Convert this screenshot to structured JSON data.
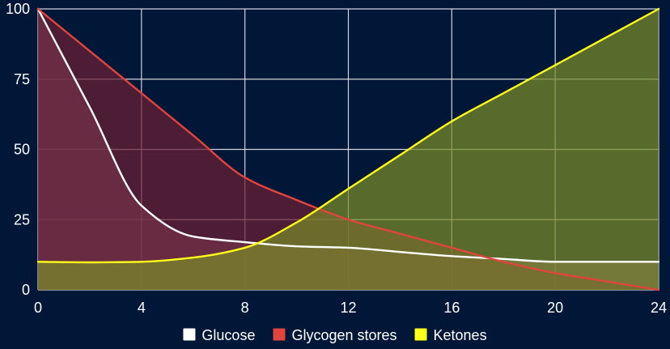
{
  "chart_data": {
    "type": "area",
    "title": "",
    "xlabel": "",
    "ylabel": "",
    "x": [
      0,
      2,
      4,
      6,
      8,
      10,
      12,
      14,
      16,
      18,
      20,
      22,
      24
    ],
    "xlim": [
      0,
      24
    ],
    "ylim": [
      0,
      100
    ],
    "x_ticks": [
      0,
      4,
      8,
      12,
      16,
      20,
      24
    ],
    "y_ticks": [
      0,
      25,
      50,
      75,
      100
    ],
    "grid": true,
    "legend_position": "bottom",
    "series": [
      {
        "name": "Glucose",
        "color": "#ffffff",
        "fill": "#8c6275",
        "values": [
          100,
          65,
          30,
          19,
          17,
          15.5,
          15,
          13.5,
          12,
          11,
          10,
          10,
          10
        ]
      },
      {
        "name": "Glycogen stores",
        "color": "#e0443c",
        "fill": "#6b1f34",
        "values": [
          100,
          85,
          70,
          55,
          40,
          32,
          25,
          20,
          15,
          10,
          6,
          3,
          0
        ]
      },
      {
        "name": "Ketones",
        "color": "#ffff1a",
        "fill": "#7a8a28",
        "values": [
          10,
          9.8,
          10,
          11.5,
          15,
          24,
          36,
          48,
          60,
          70,
          80,
          90,
          100
        ]
      }
    ]
  }
}
